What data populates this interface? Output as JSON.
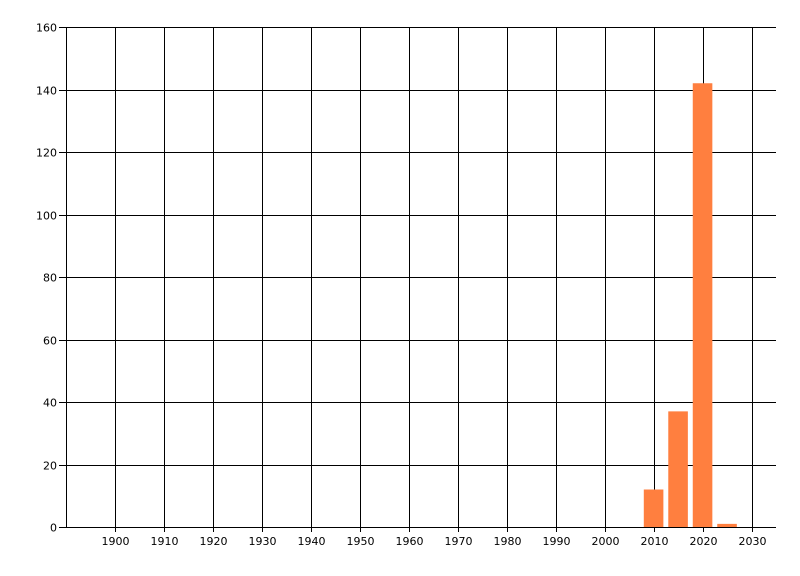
{
  "chart_data": {
    "type": "bar",
    "title": "",
    "xlabel": "",
    "ylabel": "",
    "x": [
      2010,
      2015,
      2020,
      2025
    ],
    "values": [
      12,
      37,
      142,
      1
    ],
    "bar_width_years": 4,
    "xlim": [
      1890,
      2035
    ],
    "ylim": [
      0,
      160
    ],
    "xticks": [
      1900,
      1910,
      1920,
      1930,
      1940,
      1950,
      1960,
      1970,
      1980,
      1990,
      2000,
      2010,
      2020,
      2030
    ],
    "yticks": [
      0,
      20,
      40,
      60,
      80,
      100,
      120,
      140,
      160
    ],
    "grid": true,
    "legend": "none",
    "bar_color": "#FF7F3F",
    "grid_color": "#000000"
  }
}
